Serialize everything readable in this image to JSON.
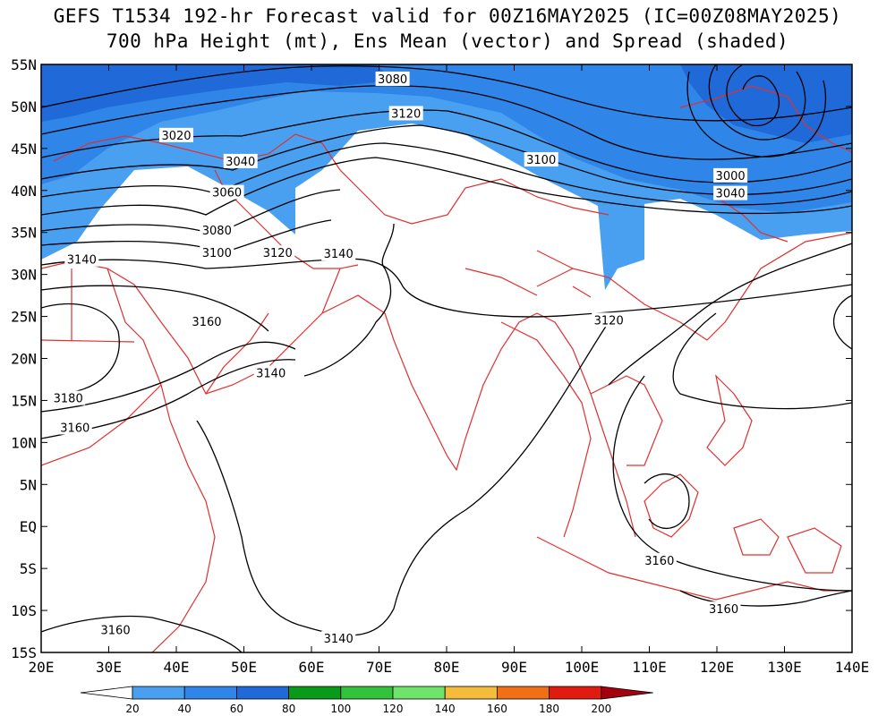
{
  "title_line1": "GEFS T1534 192-hr Forecast valid for 00Z16MAY2025 (IC=00Z08MAY2025)",
  "title_line2": "700 hPa Height (mt), Ens Mean (vector) and Spread (shaded)",
  "colors": {
    "spread_20": "#4aa0f0",
    "spread_40": "#2f86e8",
    "spread_60": "#1f6ad8",
    "coast": "#e03030",
    "contour": "#000000"
  },
  "axes": {
    "lat_labels": [
      "55N",
      "50N",
      "45N",
      "40N",
      "35N",
      "30N",
      "25N",
      "20N",
      "15N",
      "10N",
      "5N",
      "EQ",
      "5S",
      "10S",
      "15S"
    ],
    "lon_labels": [
      "20E",
      "30E",
      "40E",
      "50E",
      "60E",
      "70E",
      "80E",
      "90E",
      "100E",
      "110E",
      "120E",
      "130E",
      "140E"
    ]
  },
  "contour_labels": [
    {
      "text": "3080",
      "lon": 72,
      "lat": 53.3
    },
    {
      "text": "3120",
      "lon": 74,
      "lat": 49.2
    },
    {
      "text": "3020",
      "lon": 40,
      "lat": 46.6
    },
    {
      "text": "3040",
      "lon": 49.5,
      "lat": 43.5
    },
    {
      "text": "3060",
      "lon": 47.5,
      "lat": 39.8
    },
    {
      "text": "3080",
      "lon": 46,
      "lat": 35.3
    },
    {
      "text": "3100",
      "lon": 46,
      "lat": 32.6
    },
    {
      "text": "3120",
      "lon": 55,
      "lat": 32.6
    },
    {
      "text": "3140",
      "lon": 64,
      "lat": 32.5
    },
    {
      "text": "3140",
      "lon": 26,
      "lat": 31.8
    },
    {
      "text": "3100",
      "lon": 94,
      "lat": 43.7
    },
    {
      "text": "3000",
      "lon": 122,
      "lat": 41.8
    },
    {
      "text": "3040",
      "lon": 122,
      "lat": 39.7
    },
    {
      "text": "3120",
      "lon": 104,
      "lat": 24.6
    },
    {
      "text": "3160",
      "lon": 44.5,
      "lat": 24.4
    },
    {
      "text": "3140",
      "lon": 54,
      "lat": 18.3
    },
    {
      "text": "3180",
      "lon": 24,
      "lat": 15.3
    },
    {
      "text": "3160",
      "lon": 25,
      "lat": 11.8
    },
    {
      "text": "3160",
      "lon": 111.5,
      "lat": -4.0
    },
    {
      "text": "3160",
      "lon": 121,
      "lat": -9.8
    },
    {
      "text": "3160",
      "lon": 31,
      "lat": -12.3
    },
    {
      "text": "3140",
      "lon": 64,
      "lat": -13.3
    }
  ],
  "colorbar": {
    "labels": [
      "20",
      "40",
      "60",
      "80",
      "100",
      "120",
      "140",
      "160",
      "180",
      "200"
    ],
    "colors": [
      "#4aa0f0",
      "#2f86e8",
      "#1f6ad8",
      "#089a18",
      "#33c23a",
      "#6ee56a",
      "#f5bb3a",
      "#f07018",
      "#e01b10",
      "#a4000e"
    ]
  }
}
